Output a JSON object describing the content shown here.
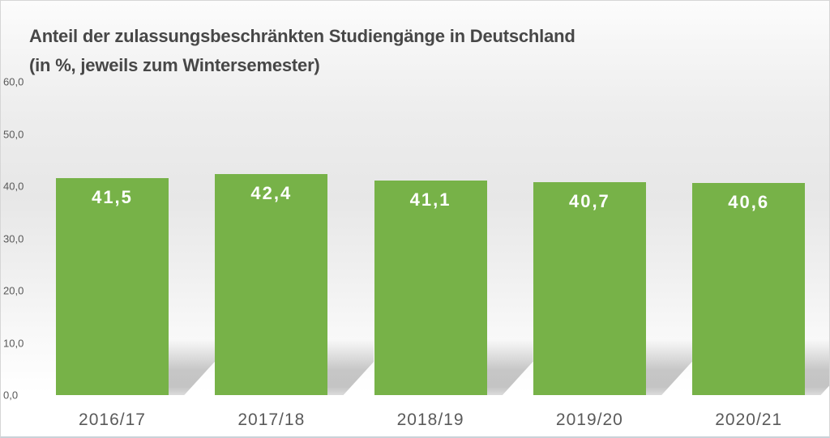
{
  "title": "Anteil der zulassungsbeschränkten Studiengänge in Deutschland",
  "subtitle": "(in %, jeweils zum Wintersemester)",
  "y_axis": {
    "ticks": [
      "60,0",
      "50,0",
      "40,0",
      "30,0",
      "20,0",
      "10,0",
      "0,0"
    ]
  },
  "chart_data": {
    "type": "bar",
    "categories": [
      "2016/17",
      "2017/18",
      "2018/19",
      "2019/20",
      "2020/21"
    ],
    "values": [
      41.5,
      42.4,
      41.1,
      40.7,
      40.6
    ],
    "value_labels": [
      "41,5",
      "42,4",
      "41,1",
      "40,7",
      "40,6"
    ],
    "title": "Anteil der zulassungsbeschränkten Studiengänge in Deutschland",
    "subtitle": "(in %, jeweils zum Wintersemester)",
    "xlabel": "",
    "ylabel": "",
    "ylim": [
      0,
      60
    ],
    "y_tick_step": 10,
    "grid": false,
    "legend": false,
    "bar_color": "#77b248",
    "value_label_color": "#ffffff",
    "axis_label_color": "#595959",
    "title_color": "#474747"
  }
}
